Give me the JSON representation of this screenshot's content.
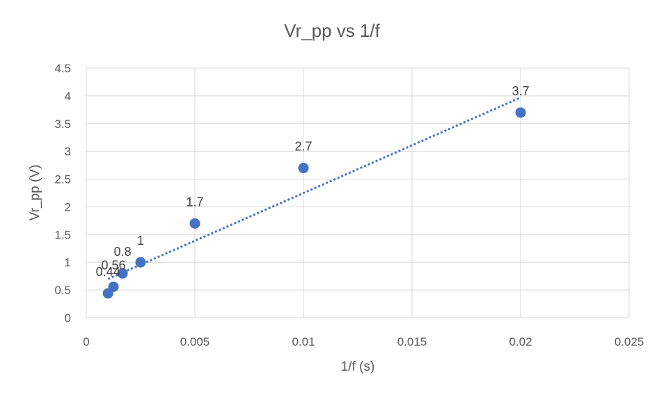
{
  "chart_data": {
    "type": "scatter",
    "title": "Vr_pp vs 1/f",
    "xlabel": "1/f (s)",
    "ylabel": "Vr_pp (V)",
    "xlim": [
      0,
      0.025
    ],
    "ylim": [
      0,
      4.5
    ],
    "x_ticks": [
      0,
      0.005,
      0.01,
      0.015,
      0.02,
      0.025
    ],
    "x_tick_labels": [
      "0",
      "0.005",
      "0.01",
      "0.015",
      "0.02",
      "0.025"
    ],
    "y_ticks": [
      0,
      0.5,
      1,
      1.5,
      2,
      2.5,
      3,
      3.5,
      4,
      4.5
    ],
    "y_tick_labels": [
      "0",
      "0.5",
      "1",
      "1.5",
      "2",
      "2.5",
      "3",
      "3.5",
      "4",
      "4.5"
    ],
    "grid": true,
    "series": [
      {
        "x": [
          0.001,
          0.00125,
          0.00167,
          0.0025,
          0.005,
          0.01,
          0.02
        ],
        "y": [
          0.44,
          0.56,
          0.8,
          1,
          1.7,
          2.7,
          3.7
        ],
        "data_labels": [
          "0.44",
          "0.56",
          "0.8",
          "1",
          "1.7",
          "2.7",
          "3.7"
        ],
        "color": "#4472c4"
      }
    ],
    "trendline": {
      "type": "linear",
      "style": "dotted",
      "color": "#4472c4",
      "x_range": [
        0.001,
        0.02
      ],
      "y_range": [
        0.7,
        3.97
      ]
    }
  }
}
